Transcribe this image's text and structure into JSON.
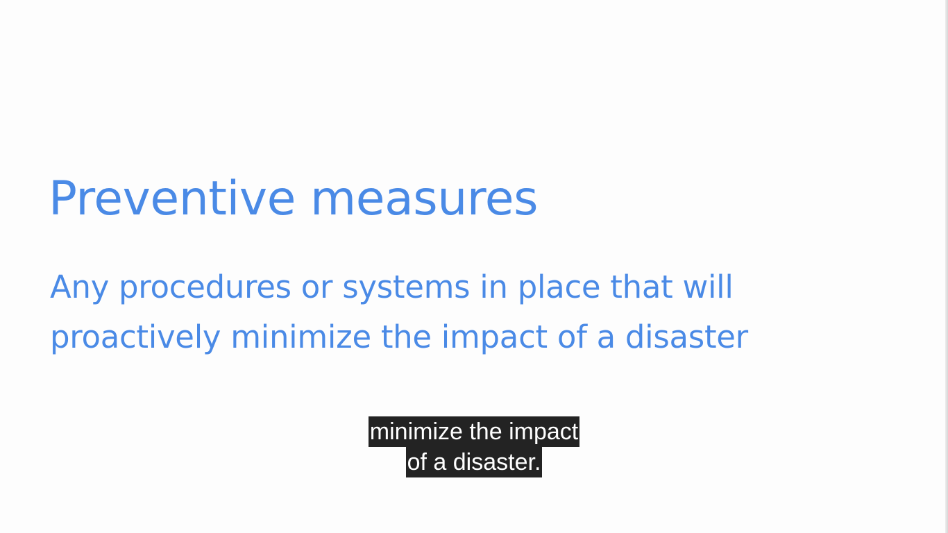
{
  "slide": {
    "title": "Preventive measures",
    "body_lines": [
      "Any procedures or systems in place that will",
      "proactively minimize the impact of a disaster"
    ],
    "text_color": "#4a8ae6"
  },
  "captions": {
    "lines": [
      "minimize the impact",
      "of a disaster."
    ],
    "background_color": "#232323",
    "text_color": "#ffffff"
  }
}
